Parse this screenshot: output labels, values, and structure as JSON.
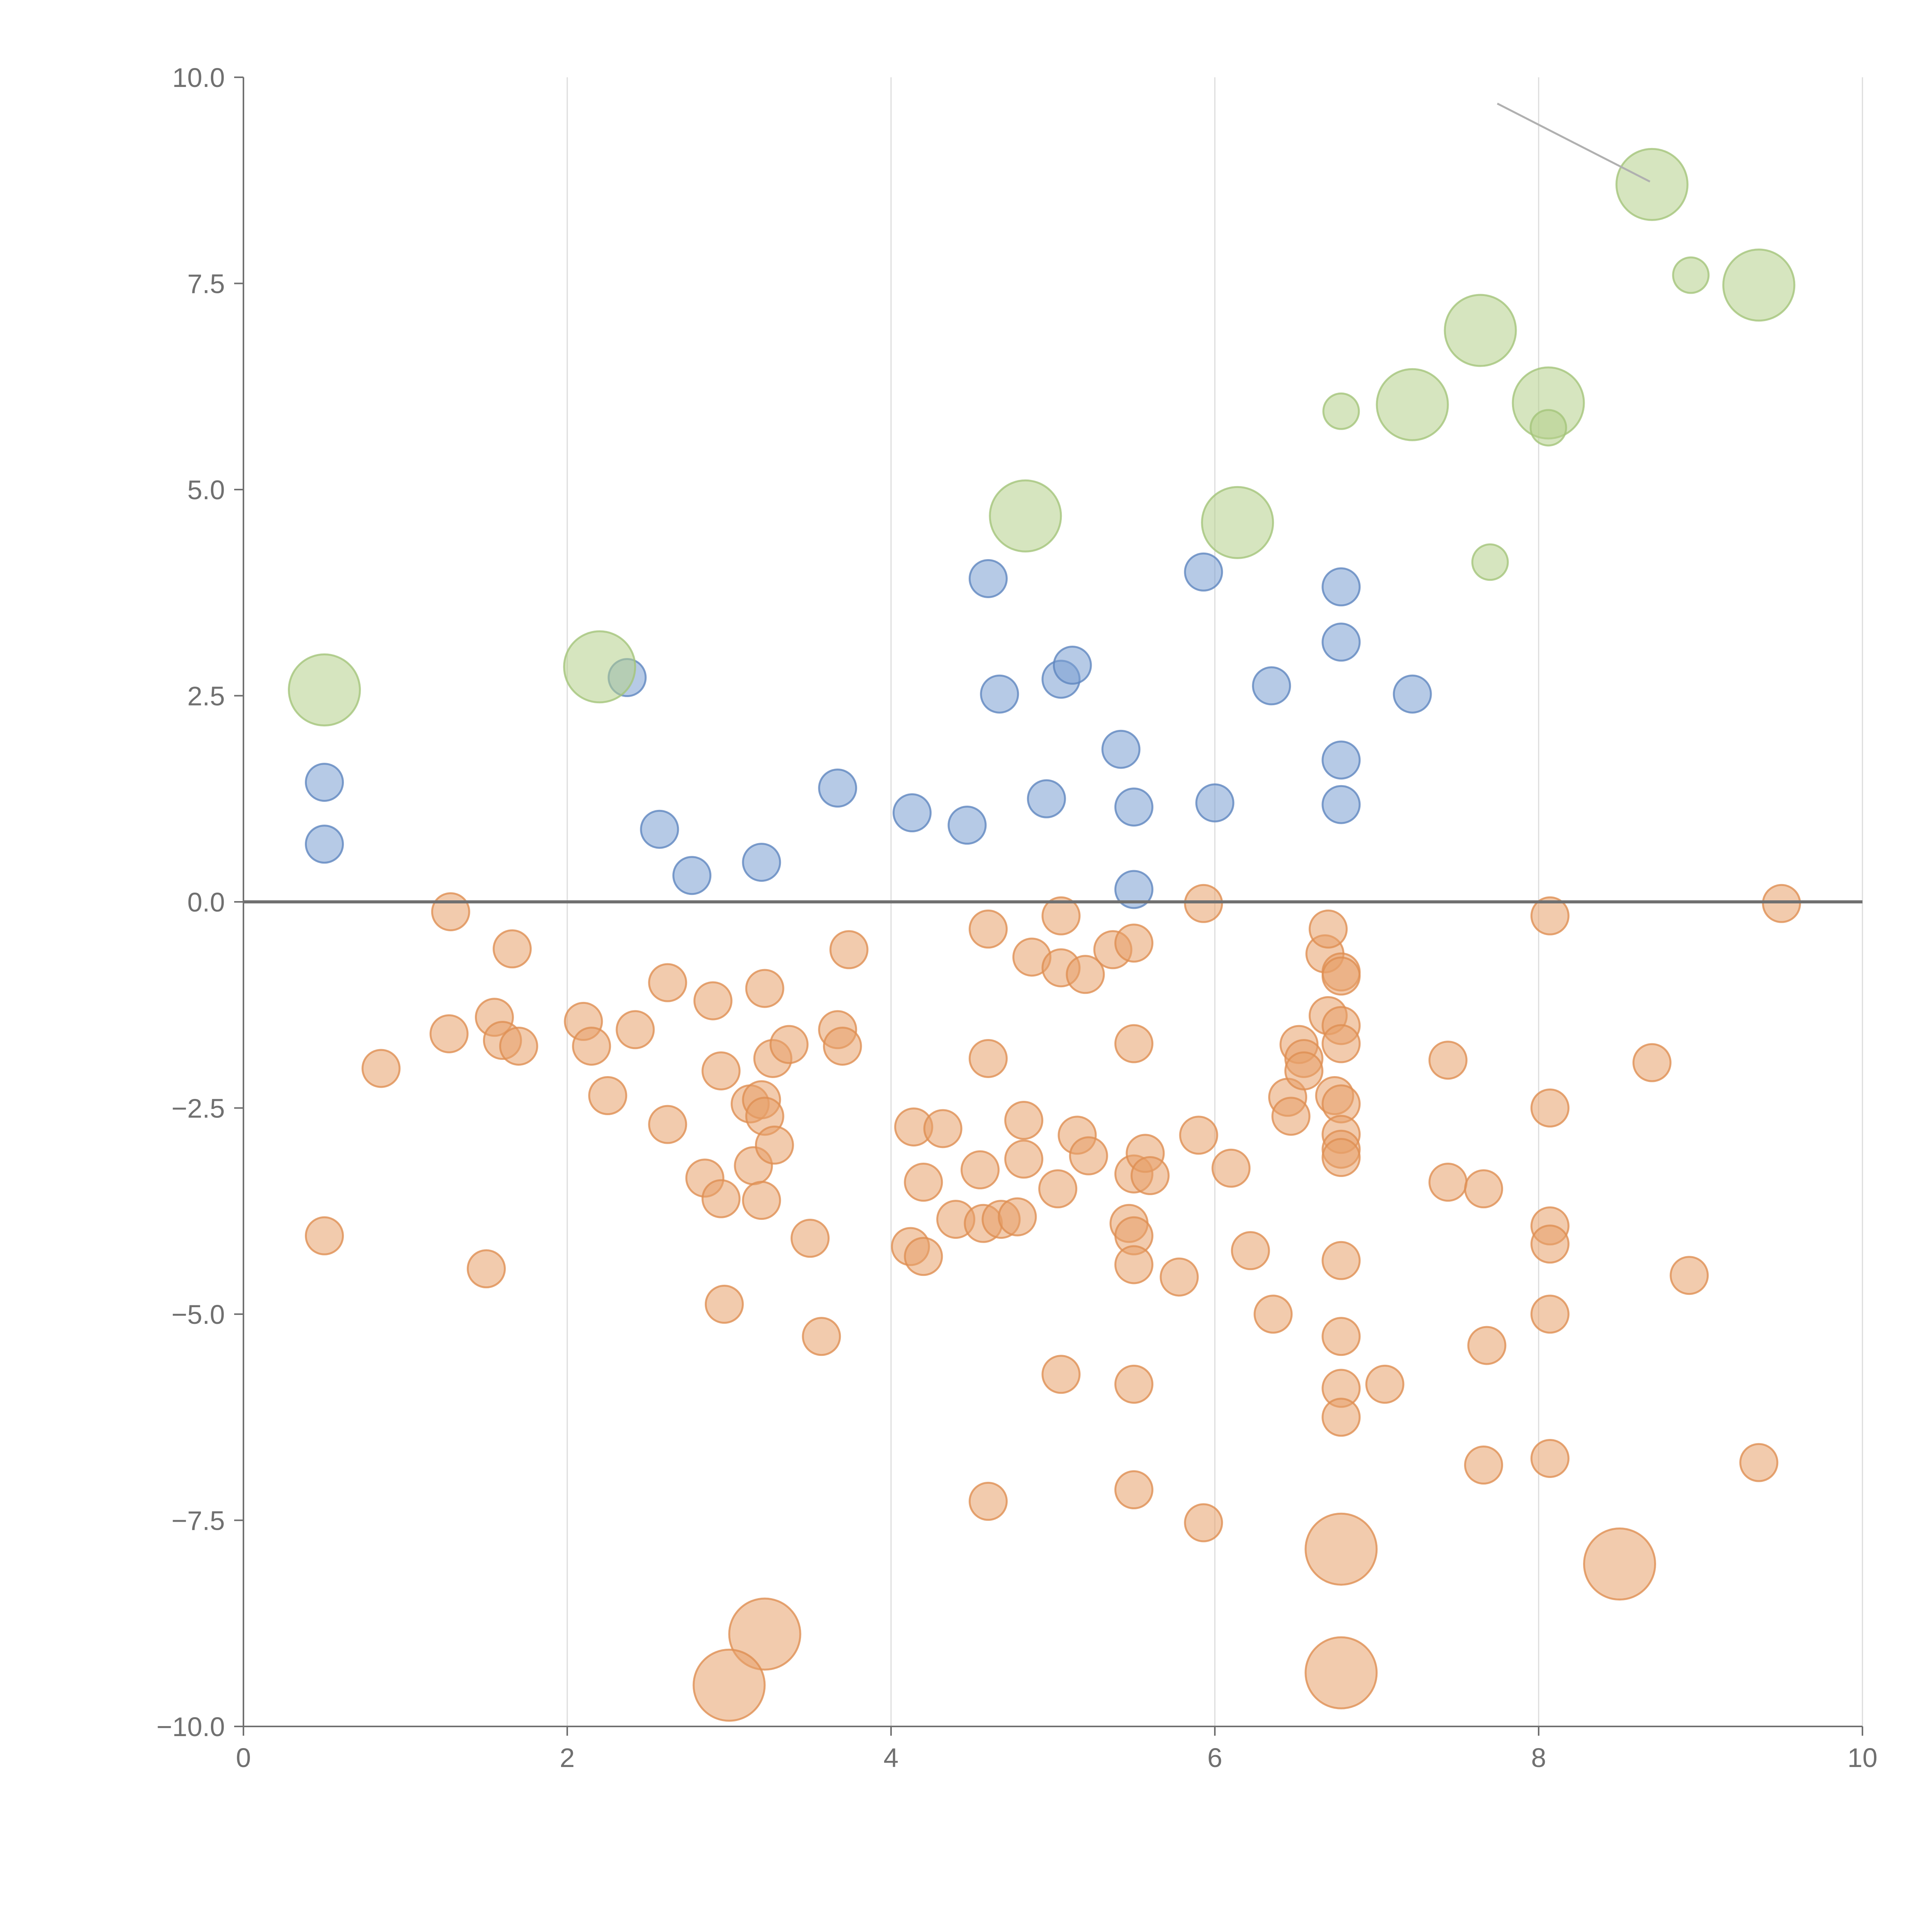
{
  "chart_data": {
    "type": "scatter",
    "title": "",
    "xlabel": "",
    "ylabel": "",
    "xlim": [
      0,
      10
    ],
    "ylim": [
      -10,
      10
    ],
    "x_ticks": [
      0,
      2,
      4,
      6,
      8,
      10
    ],
    "x_tick_labels": [
      "0",
      "2",
      "4",
      "6",
      "8",
      "10"
    ],
    "y_ticks": [
      10,
      7.5,
      5,
      2.5,
      0,
      -2.5,
      -5,
      -7.5,
      -10
    ],
    "y_tick_labels": [
      "10.0",
      "7.5",
      "5.0",
      "2.5",
      "0.0",
      "−2.5",
      "−5.0",
      "−7.5",
      "−10.0"
    ],
    "grid": "vertical",
    "baseline_y": 0,
    "legend": "none",
    "series": [
      {
        "name": "blue",
        "color": "#7a9fd1",
        "stroke": "#5f86bf",
        "points": [
          [
            0.5,
            1.45,
            1
          ],
          [
            0.5,
            0.7,
            1
          ],
          [
            2.37,
            2.72,
            1
          ],
          [
            2.57,
            0.88,
            1
          ],
          [
            2.77,
            0.32,
            1
          ],
          [
            3.2,
            0.48,
            1
          ],
          [
            3.67,
            1.38,
            1
          ],
          [
            4.13,
            1.08,
            1
          ],
          [
            4.47,
            0.93,
            1
          ],
          [
            4.6,
            3.92,
            1
          ],
          [
            4.67,
            2.52,
            1
          ],
          [
            4.96,
            1.25,
            1
          ],
          [
            5.05,
            2.7,
            1
          ],
          [
            5.12,
            2.87,
            1
          ],
          [
            5.42,
            1.85,
            1
          ],
          [
            5.5,
            1.15,
            1
          ],
          [
            5.5,
            0.15,
            1
          ],
          [
            5.93,
            4.0,
            1
          ],
          [
            6.0,
            1.2,
            1
          ],
          [
            6.35,
            2.62,
            1
          ],
          [
            6.78,
            3.82,
            1
          ],
          [
            6.78,
            3.15,
            1
          ],
          [
            6.78,
            1.72,
            1
          ],
          [
            6.78,
            1.18,
            1
          ],
          [
            7.22,
            2.52,
            1
          ]
        ]
      },
      {
        "name": "green",
        "color": "#b4d08a",
        "stroke": "#a4c47a",
        "points": [
          [
            0.5,
            2.57,
            1.8
          ],
          [
            2.2,
            2.85,
            1.8
          ],
          [
            4.83,
            4.68,
            1.8
          ],
          [
            6.14,
            4.6,
            1.8
          ],
          [
            6.78,
            5.95,
            0.9
          ],
          [
            7.22,
            6.03,
            1.8
          ],
          [
            7.64,
            6.93,
            1.8
          ],
          [
            7.7,
            4.12,
            0.9
          ],
          [
            8.06,
            6.05,
            1.8
          ],
          [
            8.06,
            5.75,
            0.9
          ],
          [
            8.7,
            8.7,
            1.8
          ],
          [
            8.94,
            7.6,
            0.9
          ],
          [
            9.36,
            7.48,
            1.8
          ]
        ]
      },
      {
        "name": "orange",
        "color": "#e8a06a",
        "stroke": "#df8e52",
        "points": [
          [
            0.5,
            -4.05,
            1
          ],
          [
            0.85,
            -2.02,
            1
          ],
          [
            1.28,
            -0.12,
            1
          ],
          [
            1.27,
            -1.6,
            1
          ],
          [
            1.5,
            -4.45,
            1
          ],
          [
            1.55,
            -1.4,
            1
          ],
          [
            1.6,
            -1.68,
            1
          ],
          [
            1.66,
            -0.57,
            1
          ],
          [
            1.7,
            -1.75,
            1
          ],
          [
            2.1,
            -1.45,
            1
          ],
          [
            2.15,
            -1.75,
            1
          ],
          [
            2.25,
            -2.35,
            1
          ],
          [
            2.42,
            -1.55,
            1
          ],
          [
            2.62,
            -0.98,
            1
          ],
          [
            2.62,
            -2.7,
            1
          ],
          [
            2.85,
            -3.35,
            1
          ],
          [
            2.9,
            -1.2,
            1
          ],
          [
            2.95,
            -2.05,
            1
          ],
          [
            2.95,
            -3.6,
            1
          ],
          [
            2.97,
            -4.88,
            1
          ],
          [
            3.13,
            -2.45,
            1
          ],
          [
            3.15,
            -3.2,
            1
          ],
          [
            3.2,
            -2.4,
            1
          ],
          [
            3.22,
            -2.6,
            1
          ],
          [
            3.2,
            -3.62,
            1
          ],
          [
            3.22,
            -1.05,
            1
          ],
          [
            3.27,
            -1.9,
            1
          ],
          [
            3.28,
            -2.95,
            1
          ],
          [
            3.37,
            -1.73,
            1
          ],
          [
            3.5,
            -4.08,
            1
          ],
          [
            3.57,
            -5.27,
            1
          ],
          [
            3.67,
            -1.55,
            1
          ],
          [
            3.7,
            -1.75,
            1
          ],
          [
            3.74,
            -0.58,
            1
          ],
          [
            4.12,
            -4.18,
            1
          ],
          [
            4.14,
            -2.73,
            1
          ],
          [
            4.2,
            -4.3,
            1
          ],
          [
            4.2,
            -3.4,
            1
          ],
          [
            4.32,
            -2.75,
            1
          ],
          [
            4.4,
            -3.85,
            1
          ],
          [
            4.55,
            -3.25,
            1
          ],
          [
            4.57,
            -3.9,
            1
          ],
          [
            4.6,
            -0.33,
            1
          ],
          [
            4.6,
            -1.9,
            1
          ],
          [
            4.6,
            -7.27,
            1
          ],
          [
            4.68,
            -3.85,
            1
          ],
          [
            4.78,
            -3.82,
            1
          ],
          [
            4.82,
            -3.12,
            1
          ],
          [
            4.82,
            -2.65,
            1
          ],
          [
            4.87,
            -0.67,
            1
          ],
          [
            5.03,
            -3.48,
            1
          ],
          [
            5.05,
            -0.8,
            1
          ],
          [
            5.05,
            -0.17,
            1
          ],
          [
            5.05,
            -5.73,
            1
          ],
          [
            5.15,
            -2.83,
            1
          ],
          [
            5.2,
            -0.88,
            1
          ],
          [
            5.22,
            -3.08,
            1
          ],
          [
            5.37,
            -0.58,
            1
          ],
          [
            5.47,
            -3.9,
            1
          ],
          [
            5.5,
            -0.5,
            1
          ],
          [
            5.5,
            -1.72,
            1
          ],
          [
            5.5,
            -3.3,
            1
          ],
          [
            5.5,
            -4.05,
            1
          ],
          [
            5.5,
            -4.4,
            1
          ],
          [
            5.5,
            -5.85,
            1
          ],
          [
            5.5,
            -7.13,
            1
          ],
          [
            5.57,
            -3.05,
            1
          ],
          [
            5.6,
            -3.32,
            1
          ],
          [
            5.78,
            -4.55,
            1
          ],
          [
            5.9,
            -2.83,
            1
          ],
          [
            5.93,
            -0.02,
            1
          ],
          [
            5.93,
            -7.53,
            1
          ],
          [
            6.1,
            -3.23,
            1
          ],
          [
            6.22,
            -4.23,
            1
          ],
          [
            6.36,
            -5.0,
            1
          ],
          [
            6.45,
            -2.37,
            1
          ],
          [
            6.47,
            -2.6,
            1
          ],
          [
            6.52,
            -1.73,
            1
          ],
          [
            6.55,
            -1.9,
            1
          ],
          [
            6.55,
            -2.05,
            1
          ],
          [
            6.68,
            -0.63,
            1
          ],
          [
            6.7,
            -0.33,
            1
          ],
          [
            6.7,
            -1.38,
            1
          ],
          [
            6.74,
            -2.35,
            1
          ],
          [
            6.78,
            -0.85,
            1
          ],
          [
            6.78,
            -0.9,
            1
          ],
          [
            6.78,
            -1.5,
            1
          ],
          [
            6.78,
            -1.72,
            1
          ],
          [
            6.78,
            -2.45,
            1
          ],
          [
            6.78,
            -2.82,
            1
          ],
          [
            6.78,
            -3.0,
            1
          ],
          [
            6.78,
            -3.1,
            1
          ],
          [
            6.78,
            -4.35,
            1
          ],
          [
            6.78,
            -5.27,
            1
          ],
          [
            6.78,
            -5.9,
            1
          ],
          [
            6.78,
            -6.25,
            1
          ],
          [
            6.78,
            -7.85,
            1.8
          ],
          [
            6.78,
            -9.35,
            1.8
          ],
          [
            7.05,
            -5.85,
            1
          ],
          [
            7.44,
            -1.92,
            1
          ],
          [
            7.44,
            -3.4,
            1
          ],
          [
            7.66,
            -3.48,
            1
          ],
          [
            7.66,
            -6.83,
            1
          ],
          [
            7.68,
            -5.38,
            1
          ],
          [
            8.07,
            -0.17,
            1
          ],
          [
            8.07,
            -2.5,
            1
          ],
          [
            8.07,
            -3.93,
            1
          ],
          [
            8.07,
            -4.15,
            1
          ],
          [
            8.07,
            -5.0,
            1
          ],
          [
            8.07,
            -6.75,
            1
          ],
          [
            8.5,
            -8.03,
            1.8
          ],
          [
            8.7,
            -1.95,
            1
          ],
          [
            8.93,
            -4.53,
            1
          ],
          [
            9.36,
            -6.8,
            1
          ],
          [
            9.5,
            -0.02,
            1
          ],
          [
            3.22,
            -8.88,
            1.8
          ],
          [
            3.0,
            -9.5,
            1.8
          ]
        ]
      }
    ]
  }
}
